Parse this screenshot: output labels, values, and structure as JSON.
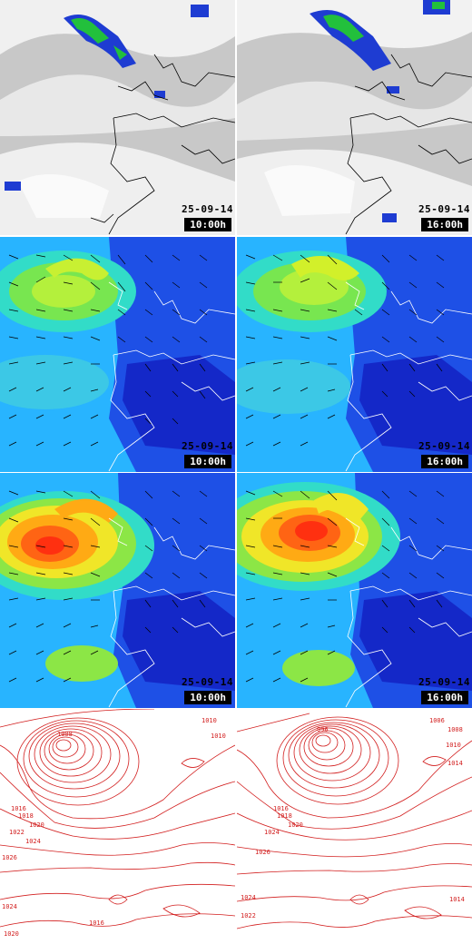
{
  "panels": [
    {
      "id": "sat-left",
      "date": "25-09-14",
      "time": "10:00h"
    },
    {
      "id": "sat-right",
      "date": "25-09-14",
      "time": "16:00h"
    },
    {
      "id": "wind-left",
      "date": "25-09-14",
      "time": "10:00h"
    },
    {
      "id": "wind-right",
      "date": "25-09-14",
      "time": "16:00h"
    },
    {
      "id": "gust-left",
      "date": "25-09-14",
      "time": "10:00h"
    },
    {
      "id": "gust-right",
      "date": "25-09-14",
      "time": "16:00h"
    }
  ],
  "isobars": {
    "left": [
      "1008",
      "1010",
      "1016",
      "1018",
      "1020",
      "1022",
      "1024",
      "1026",
      "1020",
      "1024",
      "1016",
      "1010"
    ],
    "right": [
      "996",
      "1006",
      "1008",
      "1010",
      "1014",
      "1016",
      "1018",
      "1020",
      "1024",
      "1026",
      "1022",
      "1024",
      "1014"
    ]
  },
  "colors": {
    "isobar": "#d21e1e",
    "coast": "#000000",
    "wind_low": "#1e3cd2",
    "wind_mid": "#28c8f0",
    "wind_high": "#ff3010"
  }
}
